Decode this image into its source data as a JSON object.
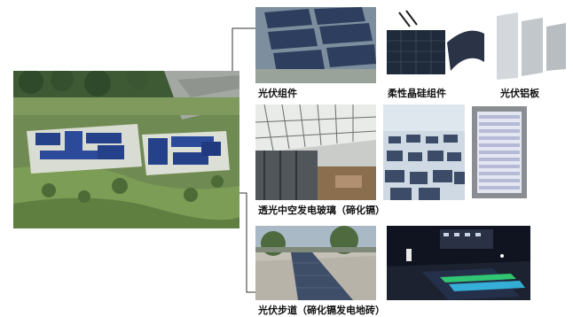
{
  "captions": {
    "pv_module": "光伏组件",
    "flexible_cigs_module": "柔性晶硅组件",
    "pv_aluminum_panel": "光伏铝板",
    "insulated_glass": "透光中空发电玻璃（碲化镉）",
    "pv_walkway": "光伏步道（碲化镉发电地砖）"
  }
}
